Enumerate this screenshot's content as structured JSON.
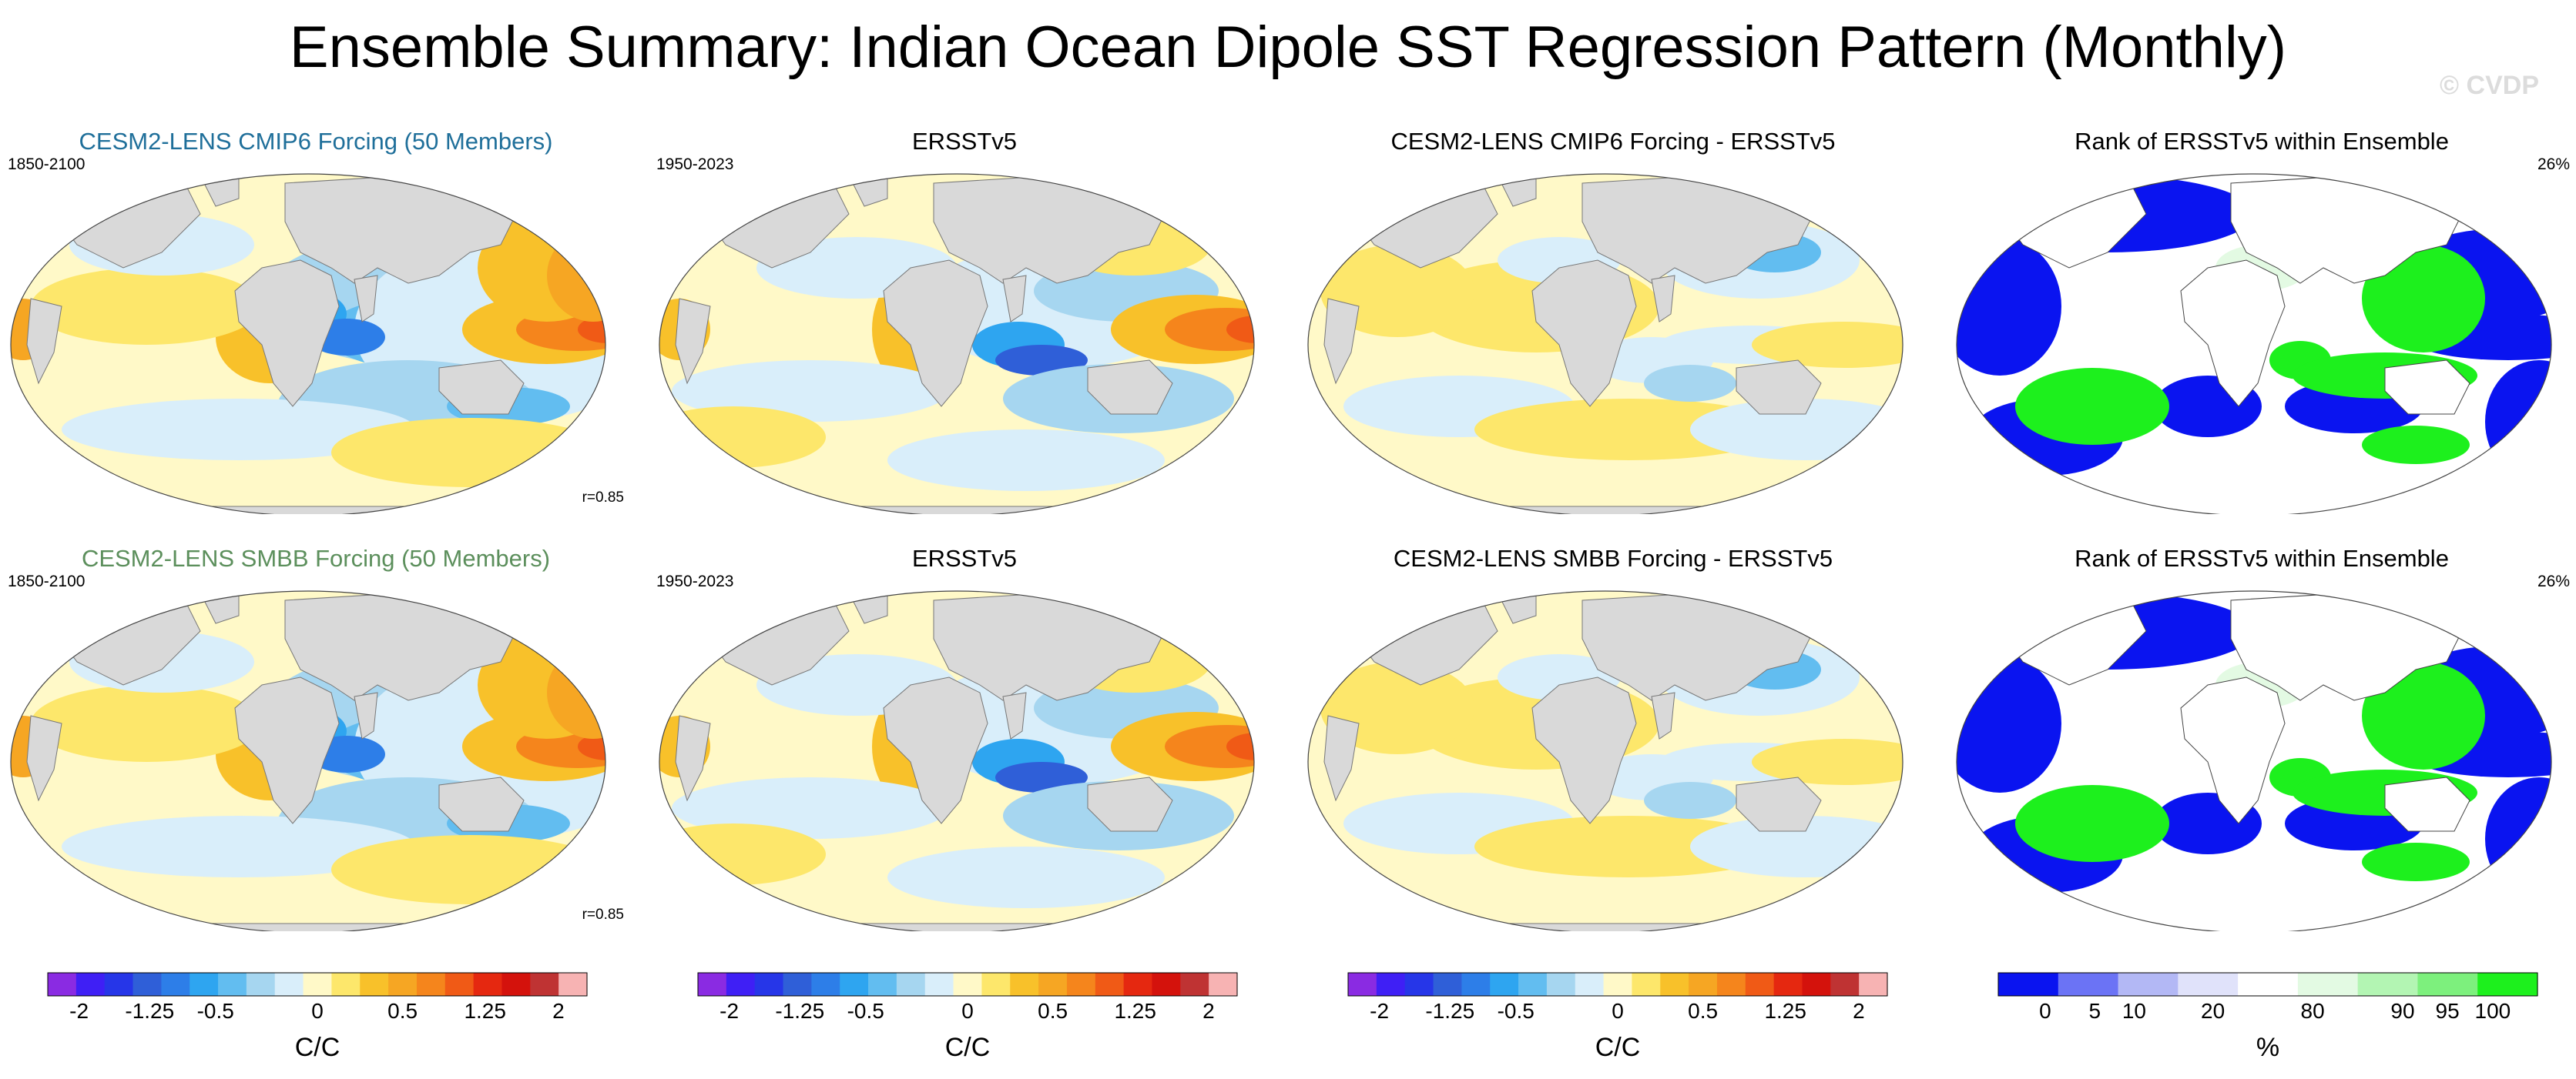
{
  "title": "Ensemble Summary: Indian Ocean Dipole SST Regression Pattern (Monthly)",
  "copyright": "© CVDP",
  "panels": {
    "r1c1": {
      "title": "CESM2-LENS CMIP6 Forcing (50 Members)",
      "left": "1850-2100",
      "right": "",
      "corr": "r=0.85",
      "title_color": "#1f6f9a"
    },
    "r1c2": {
      "title": "ERSSTv5",
      "left": "1950-2023",
      "right": "",
      "corr": "",
      "title_color": "#000000"
    },
    "r1c3": {
      "title": "CESM2-LENS CMIP6 Forcing - ERSSTv5",
      "left": "",
      "right": "",
      "corr": "",
      "title_color": "#000000"
    },
    "r1c4": {
      "title": "Rank of ERSSTv5 within Ensemble",
      "left": "",
      "right": "26%",
      "corr": "",
      "title_color": "#000000"
    },
    "r2c1": {
      "title": "CESM2-LENS SMBB Forcing (50 Members)",
      "left": "1850-2100",
      "right": "",
      "corr": "r=0.85",
      "title_color": "#5c8f5c"
    },
    "r2c2": {
      "title": "ERSSTv5",
      "left": "1950-2023",
      "right": "",
      "corr": "",
      "title_color": "#000000"
    },
    "r2c3": {
      "title": "CESM2-LENS SMBB Forcing - ERSSTv5",
      "left": "",
      "right": "",
      "corr": "",
      "title_color": "#000000"
    },
    "r2c4": {
      "title": "Rank of ERSSTv5 within Ensemble",
      "left": "",
      "right": "26%",
      "corr": "",
      "title_color": "#000000"
    }
  },
  "colorbars": {
    "sst": {
      "colors": [
        "#8a2be2",
        "#3f1ff5",
        "#2636e8",
        "#2f5fd8",
        "#2d7ee8",
        "#2ea5f0",
        "#62bdf0",
        "#a6d6f0",
        "#d9eefa",
        "#fff9c8",
        "#fde76b",
        "#f8c12a",
        "#f6a623",
        "#f5851c",
        "#f05a16",
        "#e52810",
        "#d4120c",
        "#bf3333",
        "#f7b3b3"
      ],
      "ticks": [
        "-2",
        "-1.25",
        "-0.5",
        "0",
        "0.5",
        "1.25",
        "2"
      ],
      "label": "C/C"
    },
    "rank": {
      "colors": [
        "#0a14f0",
        "#6b73f5",
        "#b3b8f5",
        "#e0e2fa",
        "#ffffff",
        "#e3fae3",
        "#b3f5b3",
        "#7df07d",
        "#1df01d"
      ],
      "ticks": [
        "0",
        "5",
        "10",
        "20",
        "80",
        "90",
        "95",
        "100"
      ],
      "label": "%"
    }
  },
  "chart_data": [
    {
      "type": "heatmap",
      "title": "CESM2-LENS CMIP6 Forcing (50 Members)",
      "period": "1850-2100",
      "pattern_correlation": 0.85,
      "units": "C/C",
      "range": [
        -2,
        2
      ],
      "pattern": {
        "west_indian_ocean": "warm",
        "east_indian_ocean_indonesia": "cold",
        "east_pacific": "warm",
        "west_pacific": "cold"
      }
    },
    {
      "type": "heatmap",
      "title": "ERSSTv5",
      "period": "1950-2023",
      "units": "C/C",
      "range": [
        -2,
        2
      ],
      "pattern": {
        "west_indian_ocean": "warm",
        "east_indian_ocean_indonesia": "cold",
        "east_pacific": "warm",
        "west_pacific": "cold"
      }
    },
    {
      "type": "heatmap",
      "title": "CESM2-LENS CMIP6 Forcing - ERSSTv5",
      "units": "C/C",
      "range": [
        -2,
        2
      ]
    },
    {
      "type": "heatmap",
      "title": "Rank of ERSSTv5 within Ensemble",
      "units": "%",
      "summary": "26%"
    },
    {
      "type": "heatmap",
      "title": "CESM2-LENS SMBB Forcing (50 Members)",
      "period": "1850-2100",
      "pattern_correlation": 0.85,
      "units": "C/C",
      "range": [
        -2,
        2
      ]
    },
    {
      "type": "heatmap",
      "title": "ERSSTv5",
      "period": "1950-2023",
      "units": "C/C",
      "range": [
        -2,
        2
      ]
    },
    {
      "type": "heatmap",
      "title": "CESM2-LENS SMBB Forcing - ERSSTv5",
      "units": "C/C",
      "range": [
        -2,
        2
      ]
    },
    {
      "type": "heatmap",
      "title": "Rank of ERSSTv5 within Ensemble",
      "units": "%",
      "summary": "26%"
    }
  ]
}
